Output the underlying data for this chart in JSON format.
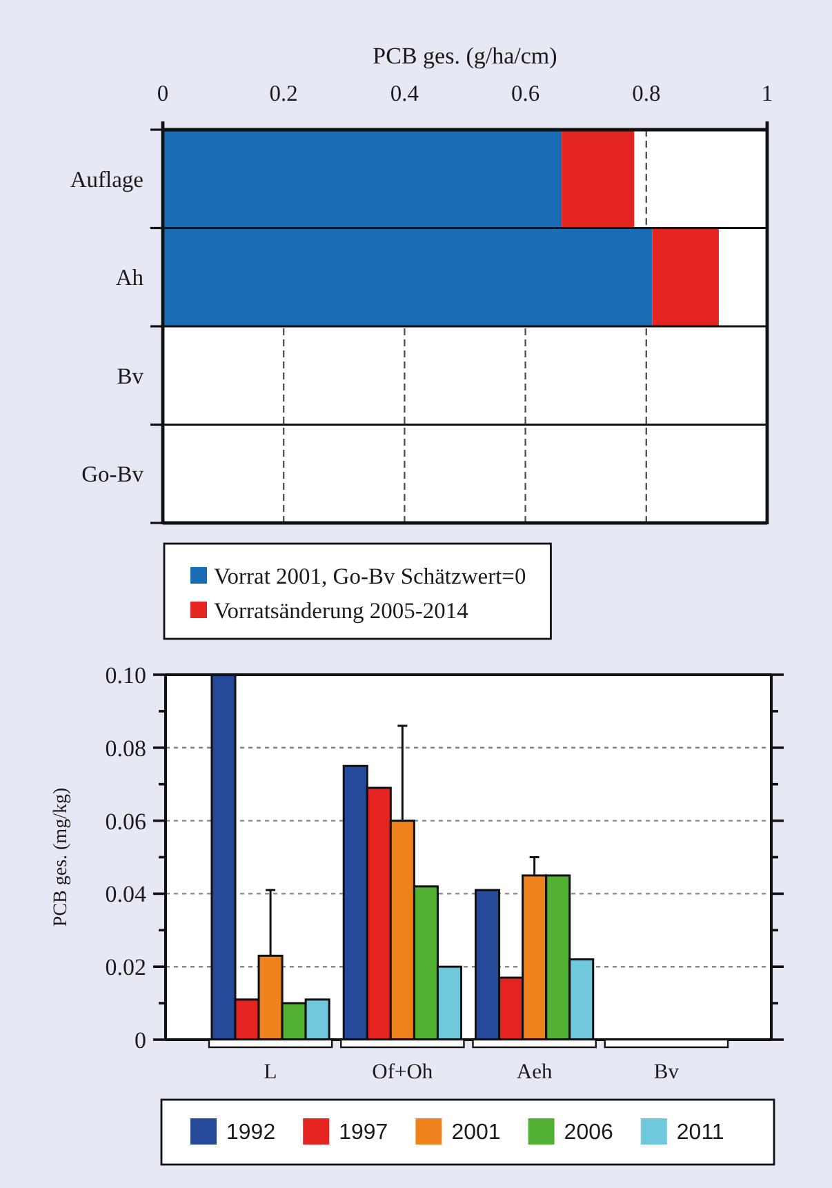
{
  "chart_data": [
    {
      "type": "bar",
      "orientation": "horizontal",
      "stacked": true,
      "xlabel": "PCB ges. (g/ha/cm)",
      "categories": [
        "Auflage",
        "Ah",
        "Bv",
        "Go-Bv"
      ],
      "series": [
        {
          "name": "Vorrat 2001, Go-Bv Schätzwert=0",
          "color": "#1a6db5",
          "values": [
            0.66,
            0.81,
            null,
            0
          ]
        },
        {
          "name": "Vorratsänderung 2005-2014",
          "color": "#e32420",
          "values": [
            0.12,
            0.11,
            null,
            null
          ]
        }
      ],
      "xlim": [
        0,
        1
      ],
      "xticks": [
        0,
        0.2,
        0.4,
        0.6,
        0.8,
        1
      ],
      "grid": "x",
      "legend": "bottom"
    },
    {
      "type": "bar",
      "ylabel": "PCB ges. (mg/kg)",
      "categories": [
        "L",
        "Of+Oh",
        "Aeh",
        "Bv"
      ],
      "series": [
        {
          "name": "1992",
          "color": "#264a9a",
          "values": [
            0.1,
            0.075,
            0.041,
            null
          ]
        },
        {
          "name": "1997",
          "color": "#e32420",
          "values": [
            0.011,
            0.069,
            0.017,
            null
          ]
        },
        {
          "name": "2001",
          "color": "#f0821e",
          "values": [
            0.023,
            0.06,
            0.045,
            null
          ],
          "errors": [
            [
              0.023,
              0.041
            ],
            [
              0.06,
              0.086
            ],
            [
              0.045,
              0.05
            ],
            null
          ]
        },
        {
          "name": "2006",
          "color": "#52b032",
          "values": [
            0.01,
            0.042,
            0.045,
            null
          ]
        },
        {
          "name": "2011",
          "color": "#6fc8dc",
          "values": [
            0.011,
            0.02,
            0.022,
            null
          ]
        }
      ],
      "ylim": [
        0,
        0.1
      ],
      "yticks": [
        0,
        {
          "value": 0.01,
          "label": null
        },
        0.02,
        {
          "value": 0.03,
          "label": null
        },
        0.04,
        {
          "value": 0.05,
          "label": null
        },
        0.06,
        {
          "value": 0.07,
          "label": null
        },
        0.08,
        {
          "value": 0.09,
          "label": null
        },
        {
          "value": 0.1,
          "label": "0.10"
        }
      ],
      "grid": "y",
      "legend": "bottom"
    }
  ]
}
